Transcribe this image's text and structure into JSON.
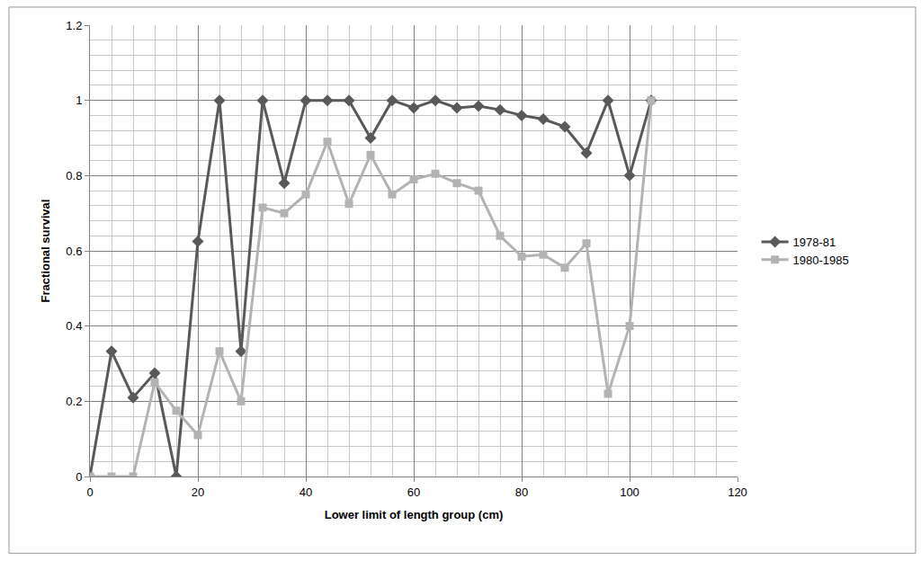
{
  "chart_data": {
    "type": "line",
    "x_label": "Lower limit of length group (cm)",
    "y_label": "Fractional survival",
    "x": [
      0,
      4,
      8,
      12,
      16,
      20,
      24,
      28,
      32,
      36,
      40,
      44,
      48,
      52,
      56,
      60,
      64,
      68,
      72,
      76,
      80,
      84,
      88,
      92,
      96,
      100,
      104
    ],
    "series": [
      {
        "name": "1978-81",
        "color": "#595959",
        "marker": "diamond",
        "values": [
          0,
          0.333,
          0.21,
          0.275,
          0,
          0.625,
          1,
          0.333,
          1,
          0.78,
          1,
          1,
          1,
          0.9,
          1,
          0.98,
          1,
          0.98,
          0.985,
          0.975,
          0.96,
          0.95,
          0.93,
          0.86,
          1,
          0.8,
          1
        ]
      },
      {
        "name": "1980-1985",
        "color": "#b3b3b3",
        "marker": "square",
        "values": [
          0,
          0,
          0,
          0.25,
          0.175,
          0.11,
          0.333,
          0.2,
          0.715,
          0.7,
          0.75,
          0.89,
          0.725,
          0.855,
          0.75,
          0.79,
          0.805,
          0.78,
          0.76,
          0.64,
          0.585,
          0.59,
          0.555,
          0.62,
          0.22,
          0.4,
          1
        ]
      }
    ],
    "xlim": [
      0,
      120
    ],
    "xticks": [
      0,
      20,
      40,
      60,
      80,
      100,
      120
    ],
    "ylim": [
      0,
      1.2
    ],
    "yticks": [
      0,
      0.2,
      0.4,
      0.6,
      0.8,
      1,
      1.2
    ],
    "grid": true,
    "legend": "right"
  }
}
